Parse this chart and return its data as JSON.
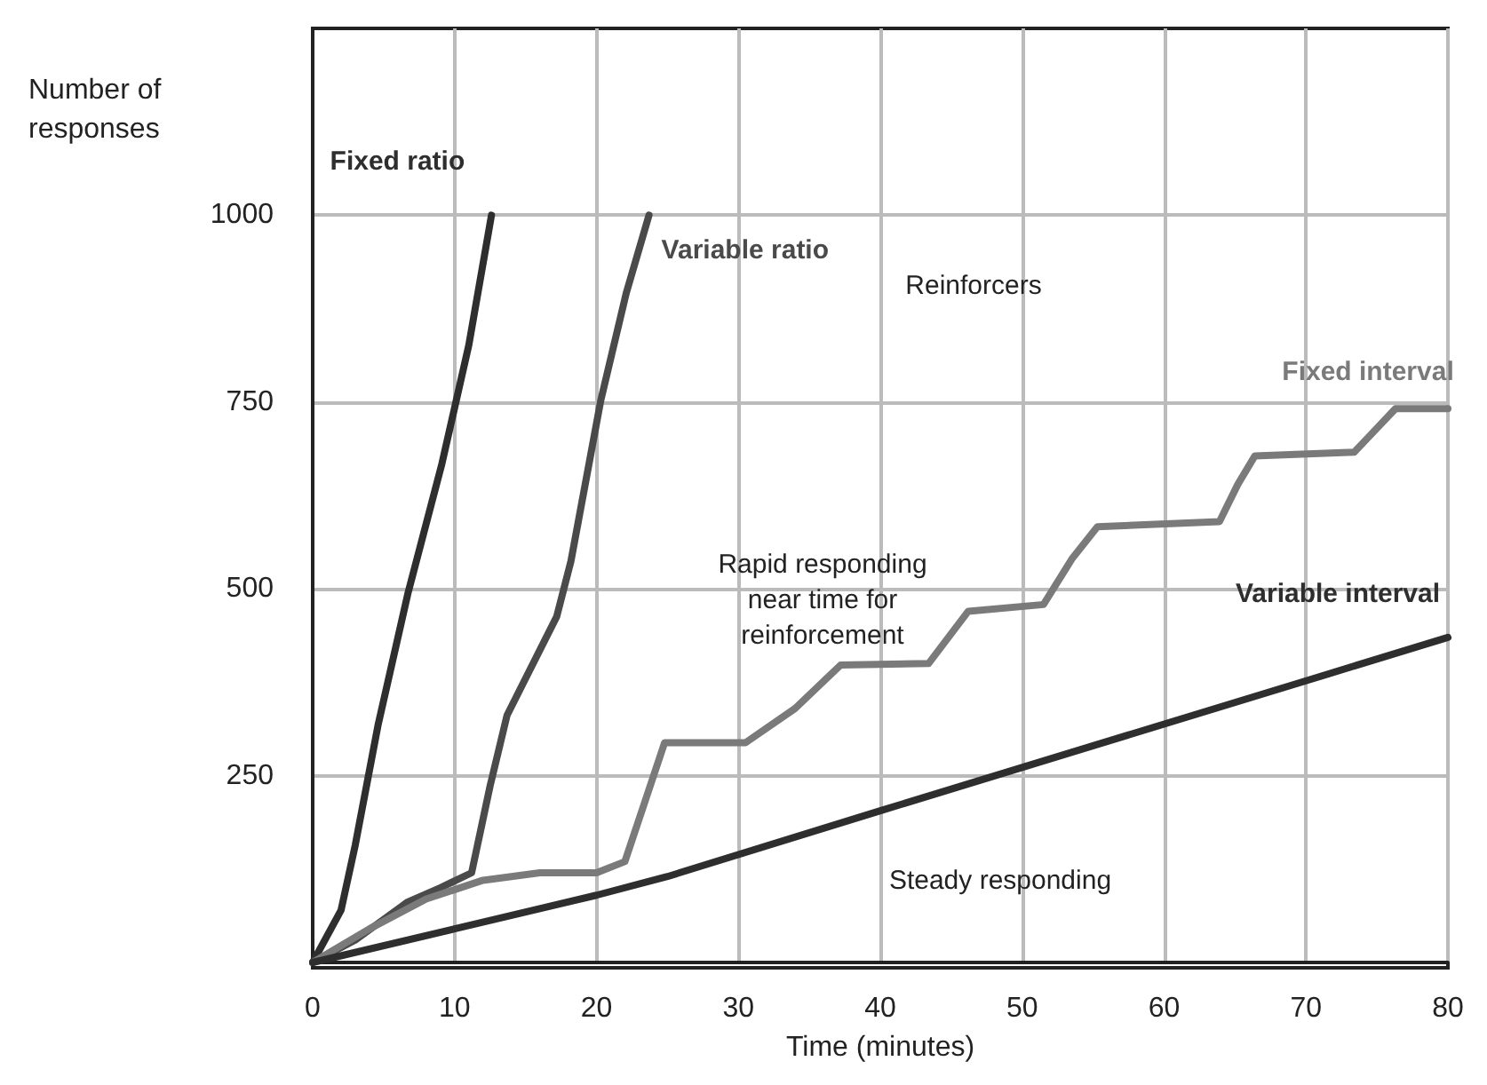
{
  "chart_data": {
    "type": "line",
    "xlabel": "Time (minutes)",
    "ylabel": "Number of responses",
    "xlim": [
      0,
      80
    ],
    "xticks": [
      0,
      10,
      20,
      30,
      40,
      50,
      60,
      70,
      80
    ],
    "ylim": [
      0,
      1250
    ],
    "yticks": [
      {
        "value": 0,
        "label": null
      },
      250,
      500,
      750,
      1000
    ],
    "grid": true,
    "legend": false,
    "marker": "none",
    "line_style": "solid",
    "series": [
      {
        "name": "Fixed ratio",
        "color": "#2e2e2e",
        "x": [
          0,
          2,
          3,
          4.6,
          6.7,
          9.1,
          11,
          12.6
        ],
        "values": [
          0,
          70,
          157,
          317,
          493,
          667,
          826,
          1000
        ]
      },
      {
        "name": "Variable ratio",
        "color": "#4a4a4a",
        "x": [
          0,
          3,
          6.7,
          9,
          11.2,
          12.5,
          13.7,
          17.2,
          18.2,
          20.3,
          22.1,
          23.7
        ],
        "values": [
          0,
          30,
          81,
          100,
          120,
          236,
          331,
          463,
          537,
          752,
          896,
          1000
        ]
      },
      {
        "name": "Fixed interval",
        "color": "#7a7a7a",
        "x": [
          0,
          4,
          8,
          12,
          16,
          20,
          22,
          23.5,
          24.8,
          30.5,
          34,
          37.2,
          43.4,
          45,
          46.2,
          51.5,
          53.5,
          55.3,
          63.9,
          65.2,
          66.4,
          73.4,
          75,
          76.3,
          80
        ],
        "values": [
          0,
          45,
          85,
          110,
          120,
          120,
          135,
          220,
          294,
          294,
          340,
          398,
          400,
          440,
          470,
          479,
          540,
          583,
          590,
          640,
          678,
          683,
          715,
          741,
          741
        ]
      },
      {
        "name": "Variable interval",
        "color": "#2e2e2e",
        "x": [
          0,
          10,
          20,
          25,
          40,
          55,
          70,
          80
        ],
        "values": [
          0,
          45,
          90,
          115,
          203,
          290,
          377,
          435
        ]
      }
    ],
    "annotations": [
      "Reinforcers",
      "Rapid responding\nnear time for\nreinforcement",
      "Steady responding"
    ]
  }
}
